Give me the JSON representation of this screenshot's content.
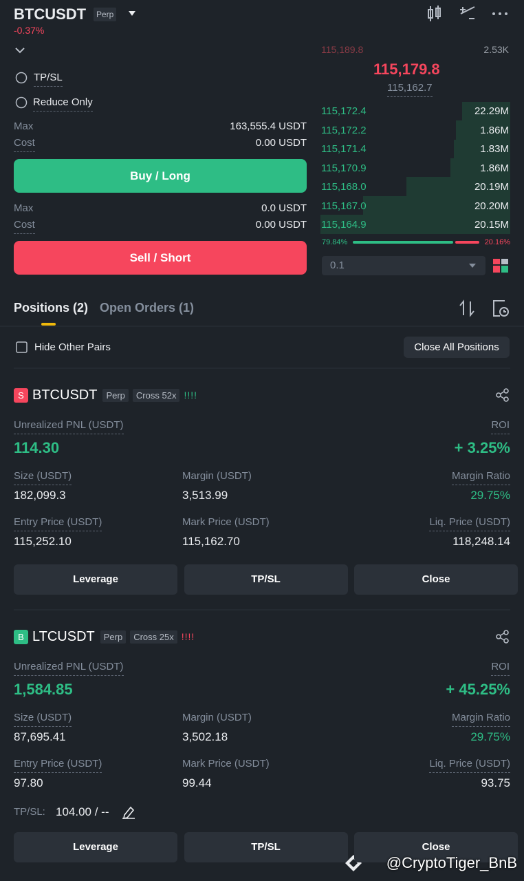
{
  "header": {
    "symbol": "BTCUSDT",
    "tag": "Perp",
    "change": "-0.37%"
  },
  "order_form": {
    "tpsl": "TP/SL",
    "reduce_only": "Reduce Only",
    "buy": {
      "max_label": "Max",
      "max_value": "163,555.4 USDT",
      "cost_label": "Cost",
      "cost_value": "0.00 USDT",
      "button": "Buy / Long"
    },
    "sell": {
      "max_label": "Max",
      "max_value": "0.0 USDT",
      "cost_label": "Cost",
      "cost_value": "0.00 USDT",
      "button": "Sell / Short"
    }
  },
  "order_book": {
    "ask_partial": {
      "price": "115,189.8",
      "qty": "2.53K"
    },
    "last_price": "115,179.8",
    "mark_price": "115,162.7",
    "bids": [
      {
        "price": "115,172.4",
        "qty": "22.29M"
      },
      {
        "price": "115,172.2",
        "qty": "1.86M"
      },
      {
        "price": "115,171.4",
        "qty": "1.83M"
      },
      {
        "price": "115,170.9",
        "qty": "1.86M"
      },
      {
        "price": "115,168.0",
        "qty": "20.19M"
      },
      {
        "price": "115,167.0",
        "qty": "20.20M"
      },
      {
        "price": "115,164.9",
        "qty": "20.15M"
      }
    ],
    "buy_ratio": "79.84%",
    "sell_ratio": "20.16%",
    "precision": "0.1"
  },
  "tabs": [
    "Positions (2)",
    "Open Orders (1)"
  ],
  "hide_other_pairs": "Hide Other Pairs",
  "close_all": "Close All Positions",
  "positions": [
    {
      "side": "S",
      "symbol": "BTCUSDT",
      "tag": "Perp",
      "margin_mode": "Cross 52x",
      "risk": "!!!!",
      "pnl_label": "Unrealized PNL (USDT)",
      "pnl": "114.30",
      "roi_label": "ROI",
      "roi": "+ 3.25%",
      "fields": [
        {
          "label": "Size (USDT)",
          "value": "182,099.3"
        },
        {
          "label": "Margin (USDT)",
          "value": "3,513.99"
        },
        {
          "label": "Margin Ratio",
          "value": "29.75%"
        },
        {
          "label": "Entry Price (USDT)",
          "value": "115,252.10"
        },
        {
          "label": "Mark Price (USDT)",
          "value": "115,162.70"
        },
        {
          "label": "Liq. Price (USDT)",
          "value": "118,248.14"
        }
      ],
      "buttons": [
        "Leverage",
        "TP/SL",
        "Close"
      ]
    },
    {
      "side": "B",
      "symbol": "LTCUSDT",
      "tag": "Perp",
      "margin_mode": "Cross 25x",
      "risk": "!!!!",
      "pnl_label": "Unrealized PNL (USDT)",
      "pnl": "1,584.85",
      "roi_label": "ROI",
      "roi": "+ 45.25%",
      "fields": [
        {
          "label": "Size (USDT)",
          "value": "87,695.41"
        },
        {
          "label": "Margin (USDT)",
          "value": "3,502.18"
        },
        {
          "label": "Margin Ratio",
          "value": "29.75%"
        },
        {
          "label": "Entry Price (USDT)",
          "value": "97.80"
        },
        {
          "label": "Mark Price (USDT)",
          "value": "99.44"
        },
        {
          "label": "Liq. Price (USDT)",
          "value": "93.75"
        }
      ],
      "tpsl": {
        "label": "TP/SL:",
        "value": "104.00 / --"
      },
      "buttons": [
        "Leverage",
        "TP/SL",
        "Close"
      ]
    }
  ],
  "watermark": "@CryptoTiger_BnB"
}
